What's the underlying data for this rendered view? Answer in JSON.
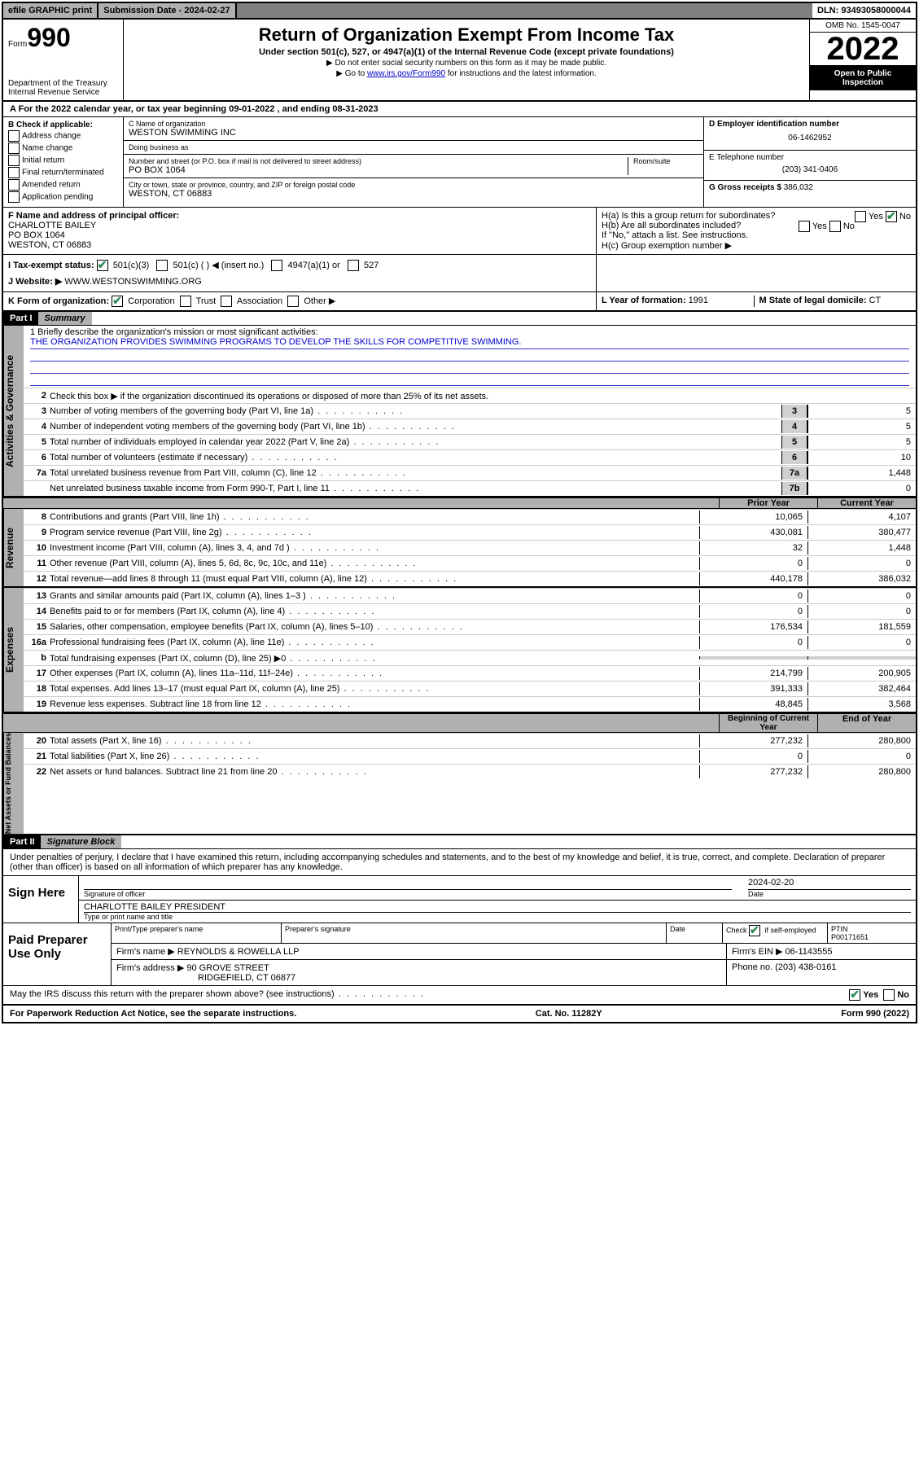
{
  "topbar": {
    "efile": "efile GRAPHIC print",
    "subdate_lbl": "Submission Date - ",
    "subdate": "2024-02-27",
    "dln": "DLN: 93493058000044"
  },
  "header": {
    "form_label": "Form",
    "form_num": "990",
    "dept": "Department of the Treasury\nInternal Revenue Service",
    "title": "Return of Organization Exempt From Income Tax",
    "sub": "Under section 501(c), 527, or 4947(a)(1) of the Internal Revenue Code (except private foundations)",
    "note1": "▶ Do not enter social security numbers on this form as it may be made public.",
    "note2_pre": "▶ Go to ",
    "note2_link": "www.irs.gov/Form990",
    "note2_post": " for instructions and the latest information.",
    "omb": "OMB No. 1545-0047",
    "year": "2022",
    "open": "Open to Public Inspection"
  },
  "taxyear": "For the 2022 calendar year, or tax year beginning 09-01-2022   , and ending 08-31-2023",
  "boxB": {
    "lbl": "B Check if applicable:",
    "items": [
      "Address change",
      "Name change",
      "Initial return",
      "Final return/terminated",
      "Amended return",
      "Application pending"
    ]
  },
  "boxC": {
    "name_lbl": "C Name of organization",
    "name": "WESTON SWIMMING INC",
    "dba_lbl": "Doing business as",
    "dba": "",
    "street_lbl": "Number and street (or P.O. box if mail is not delivered to street address)",
    "room_lbl": "Room/suite",
    "street": "PO BOX 1064",
    "city_lbl": "City or town, state or province, country, and ZIP or foreign postal code",
    "city": "WESTON, CT  06883"
  },
  "boxD": {
    "lbl": "D Employer identification number",
    "val": "06-1462952"
  },
  "boxE": {
    "lbl": "E Telephone number",
    "val": "(203) 341-0406"
  },
  "boxG": {
    "lbl": "G Gross receipts $",
    "val": "386,032"
  },
  "boxF": {
    "lbl": "F Name and address of principal officer:",
    "v1": "CHARLOTTE BAILEY",
    "v2": "PO BOX 1064",
    "v3": "WESTON, CT  06883"
  },
  "boxH": {
    "a": "H(a)  Is this a group return for subordinates?",
    "b": "H(b)  Are all subordinates included?",
    "bnote": "If \"No,\" attach a list. See instructions.",
    "c": "H(c)  Group exemption number ▶",
    "yes": "Yes",
    "no": "No"
  },
  "rowI": {
    "lbl": "I   Tax-exempt status:",
    "opts": [
      "501(c)(3)",
      "501(c) (  ) ◀ (insert no.)",
      "4947(a)(1) or",
      "527"
    ]
  },
  "rowJ": {
    "lbl": "J   Website: ▶ ",
    "val": "WWW.WESTONSWIMMING.ORG"
  },
  "rowK": {
    "lbl": "K Form of organization:",
    "opts": [
      "Corporation",
      "Trust",
      "Association",
      "Other ▶"
    ]
  },
  "rowL": {
    "lbl": "L Year of formation: ",
    "val": "1991"
  },
  "rowM": {
    "lbl": "M State of legal domicile: ",
    "val": "CT"
  },
  "part1": {
    "hdr": "Part I",
    "title": "Summary"
  },
  "mission": {
    "lbl": "1  Briefly describe the organization's mission or most significant activities:",
    "txt": "THE ORGANIZATION PROVIDES SWIMMING PROGRAMS TO DEVELOP THE SKILLS FOR COMPETITIVE SWIMMING."
  },
  "gov": {
    "label": "Activities & Governance",
    "l2": "Check this box ▶       if the organization discontinued its operations or disposed of more than 25% of its net assets.",
    "lines": [
      {
        "n": "3",
        "d": "Number of voting members of the governing body (Part VI, line 1a)",
        "b": "3",
        "v": "5"
      },
      {
        "n": "4",
        "d": "Number of independent voting members of the governing body (Part VI, line 1b)",
        "b": "4",
        "v": "5"
      },
      {
        "n": "5",
        "d": "Total number of individuals employed in calendar year 2022 (Part V, line 2a)",
        "b": "5",
        "v": "5"
      },
      {
        "n": "6",
        "d": "Total number of volunteers (estimate if necessary)",
        "b": "6",
        "v": "10"
      },
      {
        "n": "7a",
        "d": "Total unrelated business revenue from Part VIII, column (C), line 12",
        "b": "7a",
        "v": "1,448"
      },
      {
        "n": "",
        "d": "Net unrelated business taxable income from Form 990-T, Part I, line 11",
        "b": "7b",
        "v": "0"
      }
    ]
  },
  "revexp": {
    "hdr_prior": "Prior Year",
    "hdr_curr": "Current Year",
    "rev_label": "Revenue",
    "rev": [
      {
        "n": "8",
        "d": "Contributions and grants (Part VIII, line 1h)",
        "p": "10,065",
        "c": "4,107"
      },
      {
        "n": "9",
        "d": "Program service revenue (Part VIII, line 2g)",
        "p": "430,081",
        "c": "380,477"
      },
      {
        "n": "10",
        "d": "Investment income (Part VIII, column (A), lines 3, 4, and 7d )",
        "p": "32",
        "c": "1,448"
      },
      {
        "n": "11",
        "d": "Other revenue (Part VIII, column (A), lines 5, 6d, 8c, 9c, 10c, and 11e)",
        "p": "0",
        "c": "0"
      },
      {
        "n": "12",
        "d": "Total revenue—add lines 8 through 11 (must equal Part VIII, column (A), line 12)",
        "p": "440,178",
        "c": "386,032"
      }
    ],
    "exp_label": "Expenses",
    "exp": [
      {
        "n": "13",
        "d": "Grants and similar amounts paid (Part IX, column (A), lines 1–3 )",
        "p": "0",
        "c": "0"
      },
      {
        "n": "14",
        "d": "Benefits paid to or for members (Part IX, column (A), line 4)",
        "p": "0",
        "c": "0"
      },
      {
        "n": "15",
        "d": "Salaries, other compensation, employee benefits (Part IX, column (A), lines 5–10)",
        "p": "176,534",
        "c": "181,559"
      },
      {
        "n": "16a",
        "d": "Professional fundraising fees (Part IX, column (A), line 11e)",
        "p": "0",
        "c": "0"
      },
      {
        "n": "b",
        "d": "Total fundraising expenses (Part IX, column (D), line 25) ▶0",
        "p": "",
        "c": ""
      },
      {
        "n": "17",
        "d": "Other expenses (Part IX, column (A), lines 11a–11d, 11f–24e)",
        "p": "214,799",
        "c": "200,905"
      },
      {
        "n": "18",
        "d": "Total expenses. Add lines 13–17 (must equal Part IX, column (A), line 25)",
        "p": "391,333",
        "c": "382,464"
      },
      {
        "n": "19",
        "d": "Revenue less expenses. Subtract line 18 from line 12",
        "p": "48,845",
        "c": "3,568"
      }
    ],
    "na_label": "Net Assets or Fund Balances",
    "na_hdr_b": "Beginning of Current Year",
    "na_hdr_e": "End of Year",
    "na": [
      {
        "n": "20",
        "d": "Total assets (Part X, line 16)",
        "p": "277,232",
        "c": "280,800"
      },
      {
        "n": "21",
        "d": "Total liabilities (Part X, line 26)",
        "p": "0",
        "c": "0"
      },
      {
        "n": "22",
        "d": "Net assets or fund balances. Subtract line 21 from line 20",
        "p": "277,232",
        "c": "280,800"
      }
    ]
  },
  "part2": {
    "hdr": "Part II",
    "title": "Signature Block"
  },
  "sig": {
    "decl": "Under penalties of perjury, I declare that I have examined this return, including accompanying schedules and statements, and to the best of my knowledge and belief, it is true, correct, and complete. Declaration of preparer (other than officer) is based on all information of which preparer has any knowledge.",
    "here": "Sign Here",
    "sig_lbl": "Signature of officer",
    "date_lbl": "Date",
    "date": "2024-02-20",
    "name": "CHARLOTTE BAILEY  PRESIDENT",
    "name_lbl": "Type or print name and title",
    "paid": "Paid Preparer Use Only",
    "pp_name": "Print/Type preparer's name",
    "pp_sig": "Preparer's signature",
    "pp_date": "Date",
    "pp_check": "Check        if self-employed",
    "ptin_lbl": "PTIN",
    "ptin": "P00171651",
    "firm_name_lbl": "Firm's name    ▶",
    "firm_name": "REYNOLDS & ROWELLA LLP",
    "firm_ein_lbl": "Firm's EIN ▶",
    "firm_ein": "06-1143555",
    "firm_addr_lbl": "Firm's address ▶",
    "firm_addr": "90 GROVE STREET",
    "firm_city": "RIDGEFIELD, CT  06877",
    "phone_lbl": "Phone no. ",
    "phone": "(203) 438-0161",
    "may": "May the IRS discuss this return with the preparer shown above? (see instructions)"
  },
  "footer": {
    "l": "For Paperwork Reduction Act Notice, see the separate instructions.",
    "m": "Cat. No. 11282Y",
    "r": "Form 990 (2022)"
  }
}
